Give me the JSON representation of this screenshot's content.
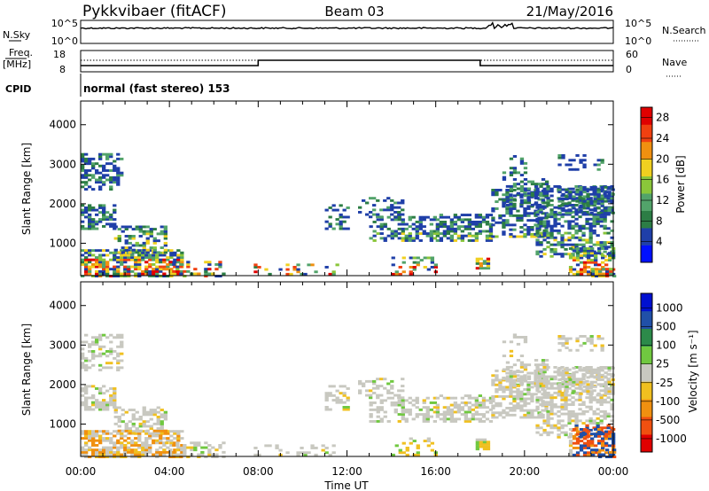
{
  "header": {
    "station": "Pykkvibaer (fitACF)",
    "beam": "Beam 03",
    "date": "21/May/2016"
  },
  "top_panels": {
    "nsky_label": "N.Sky",
    "nsky_ticks": [
      "10^5",
      "10^0"
    ],
    "nsearch_label": "N.Search",
    "nsearch_ticks": [
      "10^5",
      "10^0"
    ],
    "freq_label_1": "Freq.",
    "freq_label_2": "[MHz]",
    "freq_ticks": [
      "18",
      "8"
    ],
    "nave_label": "Nave",
    "nave_ticks": [
      "60",
      "0"
    ],
    "cpid_label": "CPID",
    "cpid_text": "normal (fast stereo) 153"
  },
  "colors": {
    "power": [
      "#0010ff",
      "#1f3fa8",
      "#2c7d45",
      "#52a36a",
      "#8ac63a",
      "#f0d020",
      "#f09010",
      "#f04010",
      "#e00000"
    ],
    "velocity": [
      "#e00000",
      "#f05010",
      "#f09010",
      "#f0c020",
      "#c8c8c0",
      "#70c840",
      "#2c8a4a",
      "#2050a8",
      "#0010d0"
    ]
  },
  "chart_data": [
    {
      "type": "heatmap",
      "panel": "power",
      "ylabel": "Slant Range [km]",
      "y_ticks": [
        1000,
        2000,
        3000,
        4000
      ],
      "ylim": [
        180,
        4600
      ],
      "xlim": [
        0,
        24
      ],
      "colorbar_label": "Power [dB]",
      "colorbar_ticks": [
        "4",
        "8",
        "12",
        "16",
        "20",
        "24",
        "28"
      ],
      "colorbar_range": [
        0,
        30
      ]
    },
    {
      "type": "heatmap",
      "panel": "velocity",
      "ylabel": "Slant Range [km]",
      "y_ticks": [
        1000,
        2000,
        3000,
        4000
      ],
      "ylim": [
        180,
        4600
      ],
      "xlim": [
        0,
        24
      ],
      "colorbar_label": "Velocity [m s⁻¹]",
      "colorbar_ticks": [
        "1000",
        "500",
        "100",
        "25",
        "-25",
        "-100",
        "-500",
        "-1000"
      ]
    }
  ],
  "xaxis": {
    "tick_labels": [
      "00:00",
      "04:00",
      "08:00",
      "12:00",
      "16:00",
      "20:00",
      "00:00"
    ],
    "label": "Time UT"
  }
}
